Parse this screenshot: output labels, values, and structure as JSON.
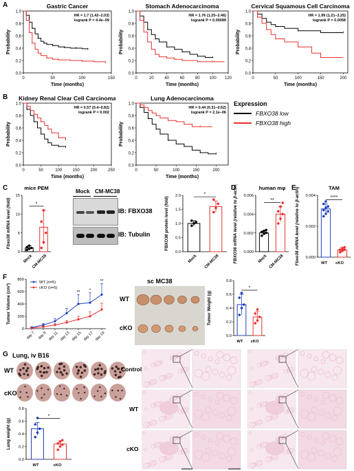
{
  "colors": {
    "low": "#000000",
    "high": "#e8312f",
    "hist": "#eec5d6",
    "hist_bg": "#f7e8ef",
    "mock_blue": "#1f3fbf"
  },
  "panels": {
    "A": "A",
    "B": "B",
    "C": "C",
    "D": "D",
    "E": "E",
    "F": "F",
    "G": "G"
  },
  "km": {
    "ylabel": "Probability",
    "xlabel": "Time (months)",
    "yticks": [
      "0.0",
      "0.2",
      "0.4",
      "0.6",
      "0.8",
      "1.0"
    ],
    "plots": [
      {
        "title": "Gastric Cancer",
        "hr": "HR = 1.7 (1.42–2.03)",
        "logrank": "logrank P = 4.4e–09",
        "xticks": [
          "0",
          "50",
          "100",
          "150"
        ],
        "xmax": 150,
        "low": [
          [
            0,
            1
          ],
          [
            5,
            0.93
          ],
          [
            10,
            0.82
          ],
          [
            15,
            0.72
          ],
          [
            20,
            0.63
          ],
          [
            25,
            0.56
          ],
          [
            30,
            0.51
          ],
          [
            35,
            0.48
          ],
          [
            40,
            0.46
          ],
          [
            50,
            0.44
          ],
          [
            60,
            0.42
          ],
          [
            70,
            0.41
          ],
          [
            80,
            0.4
          ],
          [
            90,
            0.4
          ],
          [
            100,
            0.39
          ],
          [
            110,
            0.38
          ]
        ],
        "high": [
          [
            0,
            1
          ],
          [
            5,
            0.85
          ],
          [
            10,
            0.65
          ],
          [
            15,
            0.48
          ],
          [
            20,
            0.38
          ],
          [
            25,
            0.32
          ],
          [
            30,
            0.28
          ],
          [
            40,
            0.24
          ],
          [
            50,
            0.22
          ],
          [
            60,
            0.21
          ],
          [
            80,
            0.2
          ],
          [
            100,
            0.19
          ],
          [
            120,
            0.18
          ],
          [
            140,
            0.17
          ]
        ]
      },
      {
        "title": "Stomach Adenocarcinoma",
        "hr": "HR = 1.76 (1.25–2.46)",
        "logrank": "logrank P = 0.00089",
        "xticks": [
          "0",
          "20",
          "40",
          "60",
          "80",
          "100",
          "120"
        ],
        "xmax": 120,
        "low": [
          [
            0,
            1
          ],
          [
            5,
            0.92
          ],
          [
            10,
            0.82
          ],
          [
            15,
            0.7
          ],
          [
            20,
            0.62
          ],
          [
            25,
            0.55
          ],
          [
            30,
            0.5
          ],
          [
            40,
            0.42
          ],
          [
            50,
            0.38
          ],
          [
            60,
            0.34
          ],
          [
            70,
            0.3
          ],
          [
            80,
            0.27
          ],
          [
            90,
            0.25
          ],
          [
            100,
            0.25
          ]
        ],
        "high": [
          [
            0,
            1
          ],
          [
            5,
            0.85
          ],
          [
            10,
            0.66
          ],
          [
            15,
            0.5
          ],
          [
            20,
            0.38
          ],
          [
            25,
            0.3
          ],
          [
            30,
            0.26
          ],
          [
            40,
            0.24
          ],
          [
            50,
            0.22
          ],
          [
            60,
            0.2
          ],
          [
            80,
            0.18
          ],
          [
            100,
            0.18
          ],
          [
            115,
            0.18
          ]
        ]
      },
      {
        "title": "Cervical Squamous Cell Carcinoma",
        "hr": "HR = 1.99 (1.21–3.25)",
        "logrank": "logrank P = 0.0058",
        "xticks": [
          "0",
          "50",
          "100",
          "150",
          "200"
        ],
        "xmax": 210,
        "low": [
          [
            0,
            1
          ],
          [
            10,
            0.95
          ],
          [
            20,
            0.88
          ],
          [
            30,
            0.82
          ],
          [
            40,
            0.78
          ],
          [
            50,
            0.75
          ],
          [
            70,
            0.72
          ],
          [
            100,
            0.68
          ],
          [
            150,
            0.65
          ],
          [
            200,
            0.65
          ]
        ],
        "high": [
          [
            0,
            1
          ],
          [
            10,
            0.9
          ],
          [
            20,
            0.8
          ],
          [
            30,
            0.7
          ],
          [
            40,
            0.62
          ],
          [
            50,
            0.55
          ],
          [
            70,
            0.5
          ],
          [
            100,
            0.42
          ],
          [
            130,
            0.32
          ],
          [
            150,
            0.25
          ],
          [
            200,
            0.25
          ]
        ]
      },
      {
        "title": "Kidney Renal Clear Cell Carcinoma",
        "hr": "HR = 0.57 (0.4–0.82)",
        "logrank": "logrank P = 0.002",
        "xticks": [
          "0",
          "50",
          "100",
          "150",
          "200",
          "250"
        ],
        "xmax": 250,
        "low": [
          [
            0,
            1
          ],
          [
            10,
            0.9
          ],
          [
            20,
            0.8
          ],
          [
            30,
            0.7
          ],
          [
            40,
            0.6
          ],
          [
            50,
            0.5
          ],
          [
            60,
            0.42
          ],
          [
            70,
            0.36
          ],
          [
            80,
            0.32
          ],
          [
            100,
            0.3
          ],
          [
            120,
            0.28
          ]
        ],
        "high": [
          [
            0,
            1
          ],
          [
            10,
            0.95
          ],
          [
            20,
            0.88
          ],
          [
            30,
            0.82
          ],
          [
            40,
            0.76
          ],
          [
            50,
            0.7
          ],
          [
            60,
            0.64
          ],
          [
            70,
            0.58
          ],
          [
            80,
            0.52
          ],
          [
            100,
            0.44
          ],
          [
            120,
            0.4
          ]
        ]
      },
      {
        "title": "Lung Adenocarcinoma",
        "hr": "HR = 0.44 (0.31–0.62)",
        "logrank": "logrank P = 2.1e–06",
        "xticks": [
          "0",
          "50",
          "100",
          "150",
          "200"
        ],
        "xmax": 230,
        "low": [
          [
            0,
            1
          ],
          [
            10,
            0.93
          ],
          [
            20,
            0.85
          ],
          [
            30,
            0.75
          ],
          [
            40,
            0.66
          ],
          [
            50,
            0.58
          ],
          [
            60,
            0.5
          ],
          [
            80,
            0.4
          ],
          [
            100,
            0.34
          ],
          [
            120,
            0.3
          ],
          [
            140,
            0.24
          ],
          [
            160,
            0.2
          ],
          [
            180,
            0.18
          ],
          [
            200,
            0.18
          ]
        ],
        "high": [
          [
            0,
            1
          ],
          [
            10,
            0.97
          ],
          [
            20,
            0.93
          ],
          [
            30,
            0.88
          ],
          [
            40,
            0.84
          ],
          [
            50,
            0.8
          ],
          [
            60,
            0.76
          ],
          [
            80,
            0.72
          ],
          [
            100,
            0.7
          ],
          [
            120,
            0.66
          ],
          [
            140,
            0.62
          ],
          [
            160,
            0.62
          ],
          [
            190,
            0.62
          ]
        ]
      }
    ]
  },
  "legend": {
    "title": "Expression",
    "low": "FBXO38 low",
    "high": "FBXO38 high"
  },
  "panelC": {
    "title": "mice PEM",
    "ylabel": "Fbxo38 mRNA level (fold)",
    "yticks": [
      "0",
      "5",
      "10",
      "15"
    ],
    "cats": [
      "Mock",
      "CM-MC38"
    ],
    "sig": "*",
    "values": [
      1.0,
      6.5
    ],
    "sd": [
      0.6,
      4.5
    ],
    "points": [
      [
        0.5,
        0.8,
        1.0,
        1.2,
        1.6
      ],
      [
        1.0,
        2.5,
        5.0,
        8.0,
        11.0
      ]
    ],
    "blot_mock": "Mock",
    "blot_cm": "CM-MC38",
    "ib1": "IB: FBXO38",
    "ib2": "IB: Tubulin",
    "ylabel2": "FBXO38 protein level (fold)",
    "yticks2": [
      "0.0",
      "0.5",
      "1.0",
      "1.5",
      "2.0"
    ],
    "values2": [
      1.0,
      1.6
    ],
    "sd2": [
      0.1,
      0.2
    ],
    "points2": [
      [
        0.92,
        1.0,
        1.05,
        1.1
      ],
      [
        1.4,
        1.55,
        1.7,
        1.85
      ]
    ],
    "sig2": "*"
  },
  "panelD": {
    "title": "human mφ",
    "ylabel": "FBXO38 mRNA level (relative to β-actin)",
    "yticks": [
      "0.000",
      "0.002",
      "0.004",
      "0.006"
    ],
    "cats": [
      "Mock",
      "CM-MC38"
    ],
    "sig": "**",
    "values": [
      0.002,
      0.004
    ],
    "sd": [
      0.0002,
      0.0008
    ],
    "points": [
      [
        0.0017,
        0.0019,
        0.002,
        0.0021,
        0.0022,
        0.0023
      ],
      [
        0.003,
        0.0035,
        0.004,
        0.0043,
        0.0048,
        0.0052
      ]
    ]
  },
  "panelE": {
    "title": "TAM",
    "ylabel": "Fbxo38 mRNA level (relative to β-actin)",
    "yticks": [
      "0.000",
      "0.002",
      "0.004"
    ],
    "cats": [
      "WT",
      "cKO"
    ],
    "sig": "****",
    "values": [
      0.0039,
      0.0006
    ],
    "sd": [
      0.0004,
      0.0002
    ],
    "points": [
      [
        0.0033,
        0.0035,
        0.0037,
        0.0038,
        0.004,
        0.0041,
        0.0043,
        0.0045
      ],
      [
        0.0004,
        0.0005,
        0.0006,
        0.0006,
        0.0007,
        0.0008
      ]
    ]
  },
  "panelF": {
    "ylabel": "Tumor Volume (cm³)",
    "yticks": [
      "0",
      "200",
      "400",
      "600",
      "800"
    ],
    "xticks": [
      "day 7",
      "day 9",
      "day 11",
      "day 13",
      "day 15",
      "day 17",
      "day 19"
    ],
    "wt_label": "WT (n=5)",
    "cko_label": "cKO (n=5)",
    "wt": [
      20,
      60,
      120,
      250,
      400,
      420,
      550
    ],
    "wt_sd": [
      10,
      20,
      40,
      80,
      150,
      160,
      180
    ],
    "cko": [
      10,
      30,
      60,
      100,
      150,
      200,
      310
    ],
    "cko_sd": [
      5,
      10,
      20,
      30,
      50,
      70,
      100
    ],
    "sig": [
      "",
      "",
      "",
      "",
      "**",
      "*",
      "**"
    ],
    "photo_title": "sc MC38",
    "row_wt": "WT",
    "row_cko": "cKO",
    "ylabel2": "Tumor Weight (g)",
    "yticks2": [
      "0.0",
      "0.2",
      "0.4",
      "0.6",
      "0.8"
    ],
    "cats2": [
      "WT",
      "cKO"
    ],
    "values2": [
      0.45,
      0.27
    ],
    "sd2": [
      0.15,
      0.08
    ],
    "points2": [
      [
        0.3,
        0.4,
        0.45,
        0.55,
        0.62
      ],
      [
        0.18,
        0.22,
        0.27,
        0.32,
        0.38
      ]
    ],
    "sig2": "*"
  },
  "panelG": {
    "title": "Lung, iv B16",
    "row_wt": "WT",
    "row_cko": "cKO",
    "ylabel": "Lung weight (g)",
    "yticks": [
      "0.0",
      "0.2",
      "0.4",
      "0.6",
      "0.8"
    ],
    "cats": [
      "WT",
      "cKO"
    ],
    "values": [
      0.48,
      0.24
    ],
    "sd": [
      0.1,
      0.05
    ],
    "points": [
      [
        0.35,
        0.42,
        0.48,
        0.55,
        0.65
      ],
      [
        0.15,
        0.2,
        0.23,
        0.25,
        0.28,
        0.3
      ]
    ],
    "sig": "*",
    "hist_rows": [
      "Control",
      "WT",
      "cKO"
    ]
  }
}
